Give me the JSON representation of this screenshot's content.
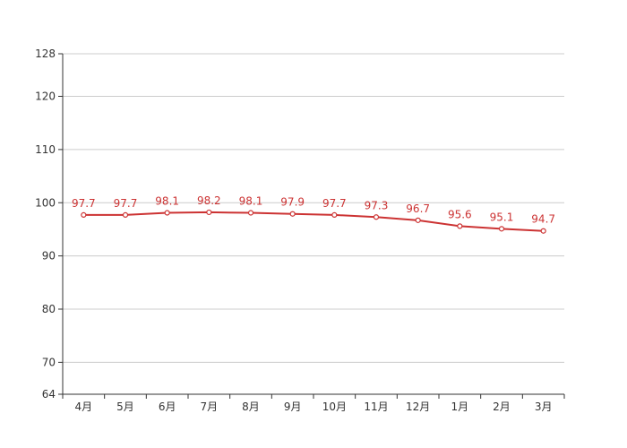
{
  "chart_data": {
    "type": "line",
    "categories": [
      "4月",
      "5月",
      "6月",
      "7月",
      "8月",
      "9月",
      "10月",
      "11月",
      "12月",
      "1月",
      "2月",
      "3月"
    ],
    "series": [
      {
        "values": [
          97.7,
          97.7,
          98.1,
          98.2,
          98.1,
          97.9,
          97.7,
          97.3,
          96.7,
          95.6,
          95.1,
          94.7
        ]
      }
    ],
    "data_labels": [
      "97.7",
      "97.7",
      "98.1",
      "98.2",
      "98.1",
      "97.9",
      "97.7",
      "97.3",
      "96.7",
      "95.6",
      "95.1",
      "94.7"
    ],
    "ylim": [
      64,
      128
    ],
    "yticks": [
      64,
      70,
      80,
      90,
      100,
      110,
      120,
      128
    ],
    "ytick_labels": [
      "64",
      "70",
      "80",
      "90",
      "100",
      "110",
      "120",
      "128"
    ],
    "grid": true,
    "legend": "none",
    "title": "",
    "xlabel": "",
    "ylabel": "",
    "colors": {
      "line": "#cc3333",
      "label": "#cc3333",
      "marker_fill": "#ffffff"
    }
  }
}
